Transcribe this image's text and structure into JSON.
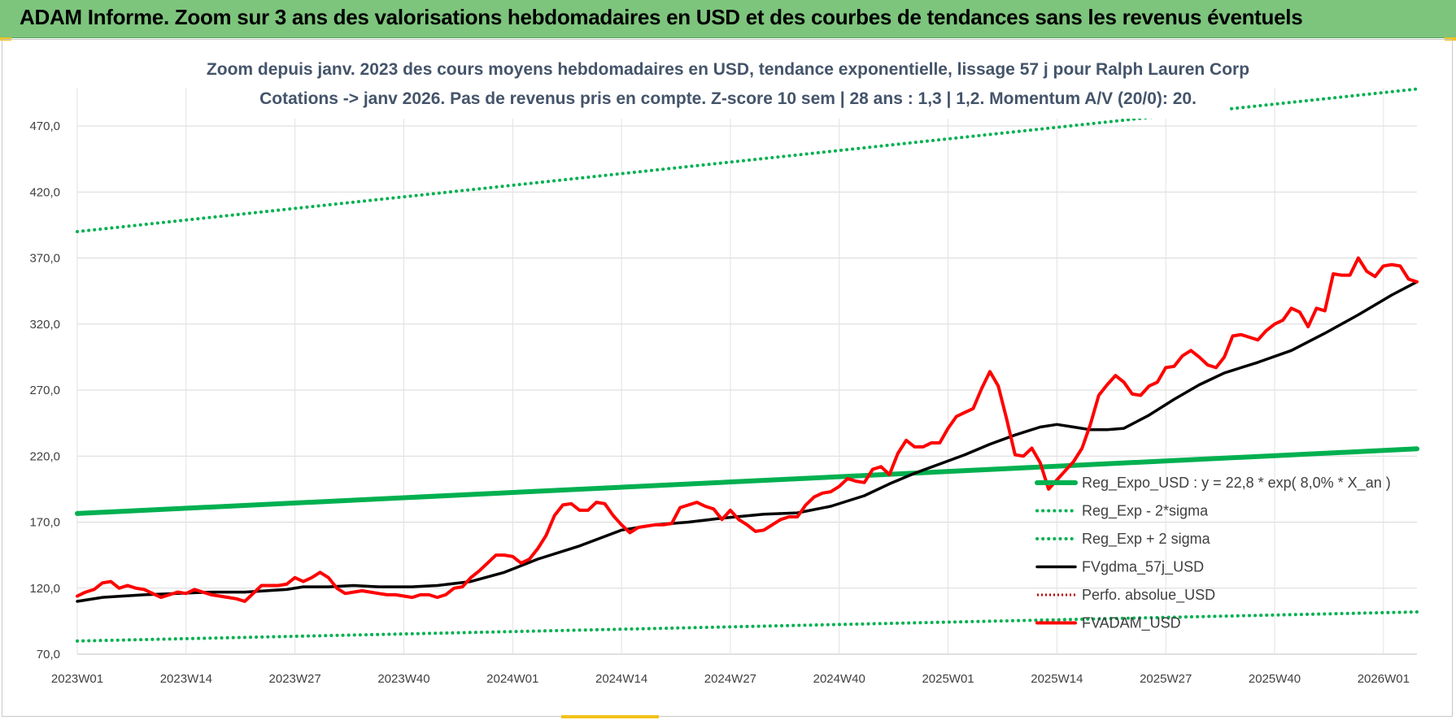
{
  "header": {
    "title": "ADAM Informe. Zoom sur 3 ans des valorisations hebdomadaires en USD et des courbes de tendances sans les revenus éventuels"
  },
  "colors": {
    "banner": "#7dc47d",
    "trend": "#00b050",
    "price": "#ff0000",
    "smooth": "#000000",
    "perf": "#c00000"
  },
  "chart_data": {
    "type": "line",
    "title_line1": "Zoom depuis janv. 2023 des cours moyens hebdomadaires en USD, tendance exponentielle, lissage 57 j pour Ralph Lauren Corp",
    "title_line2": "Cotations -> janv 2026. Pas de revenus pris en compte. Z-score 10 sem | 28 ans : 1,3 | 1,2. Momentum A/V (20/0): 20.",
    "xlabel": "",
    "ylabel": "",
    "ylim": [
      70,
      500
    ],
    "yticks": [
      "70,0",
      "120,0",
      "170,0",
      "220,0",
      "270,0",
      "320,0",
      "370,0",
      "420,0",
      "470,0"
    ],
    "ytick_values": [
      70,
      120,
      170,
      220,
      270,
      320,
      370,
      420,
      470
    ],
    "xticks": [
      "2023W01",
      "2023W14",
      "2023W27",
      "2023W40",
      "2024W01",
      "2024W14",
      "2024W27",
      "2024W40",
      "2025W01",
      "2025W14",
      "2025W27",
      "2025W40",
      "2026W01"
    ],
    "weeks_total": 161,
    "grid": true,
    "legend_position": "right",
    "series": [
      {
        "name": "Reg_Expo_USD : y = 22,8 * exp( 8,0% *  X_an )",
        "style": "thick-solid",
        "x": [
          0,
          160
        ],
        "values": [
          176.5,
          225.5
        ]
      },
      {
        "name": "Reg_Exp - 2*sigma",
        "style": "dotted",
        "x": [
          0,
          160
        ],
        "values": [
          80,
          102
        ]
      },
      {
        "name": "Reg_Exp + 2 sigma",
        "style": "dotted",
        "x": [
          0,
          160
        ],
        "values": [
          390,
          498
        ]
      },
      {
        "name": "FVgdma_57j_USD",
        "style": "solid",
        "x": [
          0,
          3,
          8,
          12,
          16,
          20,
          25,
          27,
          30,
          33,
          36,
          40,
          43,
          47,
          51,
          55,
          60,
          65,
          69,
          73,
          77,
          82,
          86,
          90,
          94,
          97,
          100,
          103,
          106,
          109,
          112,
          115,
          117,
          119,
          121,
          123,
          125,
          128,
          131,
          134,
          137,
          141,
          145,
          149,
          153,
          157,
          160
        ],
        "values": [
          110,
          113,
          115,
          116,
          117,
          117,
          119,
          121,
          121,
          122,
          121,
          121,
          122,
          125,
          132,
          142,
          152,
          164,
          168,
          170,
          173,
          176,
          177,
          182,
          190,
          199,
          207,
          214,
          221,
          229,
          236,
          242,
          244,
          242,
          240,
          240,
          241,
          251,
          263,
          274,
          283,
          291,
          300,
          313,
          327,
          342,
          352
        ]
      },
      {
        "name": "Perfo. absolue_USD",
        "style": "dotted",
        "x": [],
        "values": []
      },
      {
        "name": "FVADAM_USD",
        "style": "thick-solid",
        "x": [
          0,
          1,
          2,
          3,
          4,
          5,
          6,
          7,
          8,
          9,
          10,
          11,
          12,
          13,
          14,
          15,
          16,
          17,
          18,
          19,
          20,
          21,
          22,
          23,
          24,
          25,
          26,
          27,
          28,
          29,
          30,
          31,
          32,
          33,
          34,
          35,
          36,
          37,
          38,
          39,
          40,
          41,
          42,
          43,
          44,
          45,
          46,
          47,
          48,
          49,
          50,
          51,
          52,
          53,
          54,
          55,
          56,
          57,
          58,
          59,
          60,
          61,
          62,
          63,
          64,
          65,
          66,
          67,
          68,
          69,
          70,
          71,
          72,
          73,
          74,
          75,
          76,
          77,
          78,
          79,
          80,
          81,
          82,
          83,
          84,
          85,
          86,
          87,
          88,
          89,
          90,
          91,
          92,
          93,
          94,
          95,
          96,
          97,
          98,
          99,
          100,
          101,
          102,
          103,
          104,
          105,
          106,
          107,
          108,
          109,
          110,
          111,
          112,
          113,
          114,
          115,
          116,
          117,
          118,
          119,
          120,
          121,
          122,
          123,
          124,
          125,
          126,
          127,
          128,
          129,
          130,
          131,
          132,
          133,
          134,
          135,
          136,
          137,
          138,
          139,
          140,
          141,
          142,
          143,
          144,
          145,
          146,
          147,
          148,
          149,
          150,
          151,
          152,
          153,
          154,
          155,
          156,
          157,
          158,
          159,
          160
        ],
        "values": [
          114,
          117,
          119,
          124,
          125,
          120,
          122,
          120,
          119,
          116,
          113,
          115,
          117,
          116,
          119,
          117,
          115,
          114,
          113,
          112,
          110,
          116,
          122,
          122,
          122,
          123,
          128,
          125,
          128,
          132,
          128,
          120,
          116,
          117,
          118,
          117,
          116,
          115,
          115,
          114,
          113,
          115,
          115,
          113,
          115,
          120,
          121,
          128,
          133,
          139,
          145,
          145,
          144,
          139,
          142,
          150,
          160,
          175,
          183,
          184,
          179,
          179,
          185,
          184,
          175,
          168,
          162,
          166,
          167,
          168,
          168,
          169,
          181,
          183,
          185,
          182,
          180,
          172,
          179,
          172,
          168,
          163,
          164,
          168,
          172,
          174,
          174,
          183,
          189,
          192,
          193,
          197,
          203,
          201,
          200,
          210,
          212,
          206,
          222,
          232,
          227,
          227,
          230,
          230,
          241,
          250,
          253,
          256,
          271,
          284,
          273,
          248,
          221,
          220,
          226,
          215,
          195,
          202,
          209,
          216,
          226,
          244,
          266,
          274,
          281,
          276,
          267,
          266,
          273,
          276,
          287,
          288,
          296,
          300,
          295,
          289,
          287,
          295,
          311,
          312,
          310,
          308,
          315,
          320,
          323,
          332,
          329,
          318,
          332,
          330,
          358,
          357,
          357,
          370,
          360,
          356,
          364,
          365,
          364,
          354,
          352
        ]
      }
    ]
  }
}
